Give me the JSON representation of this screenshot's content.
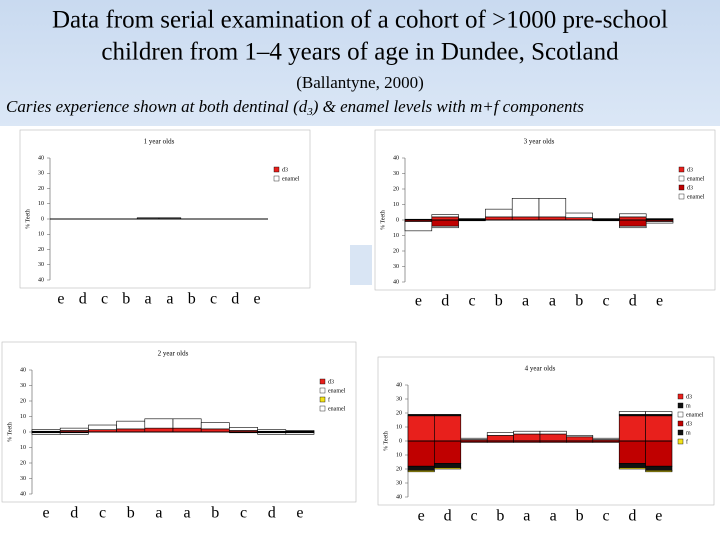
{
  "header": {
    "title_lines": [
      "Data from serial examination of a cohort of >1000 pre-school",
      "children from 1–4 years of age in Dundee, Scotland"
    ],
    "source": "(Ballantyne, 2000)",
    "caption_parts": [
      "Caries experience shown at both dentinal (d",
      "3",
      ") & enamel levels with m+f components"
    ]
  },
  "chart_data": [
    {
      "type": "bar",
      "title": "1 year olds",
      "ylabel": "% Teeth",
      "categories": [
        "e",
        "d",
        "c",
        "b",
        "a",
        "a",
        "b",
        "c",
        "d",
        "e"
      ],
      "ylim": [
        -40,
        40
      ],
      "yticks": [
        40,
        30,
        20,
        10,
        0,
        {
          "value": -10,
          "label": "10"
        },
        {
          "value": -20,
          "label": "20"
        },
        {
          "value": -30,
          "label": "30"
        },
        {
          "value": -40,
          "label": "40"
        }
      ],
      "series": [
        {
          "name": "d3",
          "color": "#e8201c",
          "values": [
            0,
            0,
            0,
            0,
            0.3,
            0.3,
            0,
            0,
            0,
            0
          ]
        },
        {
          "name": "enamel",
          "color": "#ffffff",
          "values": [
            0,
            0,
            0,
            0,
            0.5,
            0.5,
            0,
            0,
            0,
            0
          ]
        }
      ]
    },
    {
      "type": "bar",
      "title": "2 year olds",
      "ylabel": "% Teeth",
      "categories": [
        "e",
        "d",
        "c",
        "b",
        "a",
        "a",
        "b",
        "c",
        "d",
        "e"
      ],
      "ylim": [
        -40,
        40
      ],
      "yticks": [
        40,
        30,
        20,
        10,
        0,
        {
          "value": -10,
          "label": "10"
        },
        {
          "value": -20,
          "label": "20"
        },
        {
          "value": -30,
          "label": "30"
        },
        {
          "value": -40,
          "label": "40"
        }
      ],
      "series": [
        {
          "name": "d3",
          "color": "#e8201c",
          "values": [
            0.5,
            1,
            1.5,
            2,
            2.5,
            2.5,
            2,
            1,
            0.5,
            0.5
          ]
        },
        {
          "name": "enamel",
          "color": "#ffffff",
          "values": [
            1,
            1.5,
            3,
            5,
            6,
            6,
            4,
            2,
            1,
            0.5
          ]
        },
        {
          "name": "f",
          "color": "#f2e21a",
          "values": [
            -0.5,
            -0.5,
            0,
            0,
            0,
            0,
            0,
            0,
            -0.5,
            -0.5
          ]
        },
        {
          "name": "enamel",
          "color": "#ffffff",
          "values": [
            -1,
            -1,
            0,
            0,
            0,
            0,
            0,
            -0.5,
            -1,
            -1
          ]
        }
      ]
    },
    {
      "type": "bar",
      "title": "3 year olds",
      "ylabel": "% Teeth",
      "categories": [
        "e",
        "d",
        "c",
        "b",
        "a",
        "a",
        "b",
        "c",
        "d",
        "e"
      ],
      "ylim": [
        -40,
        40
      ],
      "yticks": [
        40,
        30,
        20,
        10,
        0,
        {
          "value": -10,
          "label": "10"
        },
        {
          "value": -20,
          "label": "20"
        },
        {
          "value": -30,
          "label": "30"
        },
        {
          "value": -40,
          "label": "40"
        }
      ],
      "series": [
        {
          "name": "d3",
          "color": "#e8201c",
          "values": [
            0.5,
            2,
            0.5,
            2,
            2,
            2,
            1.5,
            0.5,
            2,
            0.5
          ]
        },
        {
          "name": "enamel",
          "color": "#ffffff",
          "values": [
            0,
            1.5,
            0.5,
            5,
            12,
            12,
            3,
            0.5,
            2,
            0.5
          ]
        },
        {
          "name": "d3",
          "color": "#c00000",
          "values": [
            -1,
            -4,
            -0.5,
            0,
            0,
            0,
            0,
            -0.5,
            -4,
            -1
          ]
        },
        {
          "name": "enamel",
          "color": "#ffffff",
          "values": [
            -6,
            -1,
            0,
            0,
            0,
            0,
            0,
            0,
            -1,
            -1
          ]
        }
      ]
    },
    {
      "type": "bar",
      "title": "4 year olds",
      "ylabel": "% Teeth",
      "categories": [
        "e",
        "d",
        "c",
        "b",
        "a",
        "a",
        "b",
        "c",
        "d",
        "e"
      ],
      "ylim": [
        -40,
        40
      ],
      "yticks": [
        40,
        30,
        20,
        10,
        0,
        {
          "value": -10,
          "label": "10"
        },
        {
          "value": -20,
          "label": "20"
        },
        {
          "value": -30,
          "label": "30"
        },
        {
          "value": -40,
          "label": "40"
        }
      ],
      "series": [
        {
          "name": "d3",
          "color": "#e8201c",
          "values": [
            18,
            18,
            1,
            4,
            5,
            5,
            3,
            1,
            18,
            18
          ]
        },
        {
          "name": "m",
          "color": "#111111",
          "values": [
            1,
            1,
            0,
            0,
            0,
            0,
            0,
            0,
            1,
            1
          ]
        },
        {
          "name": "enamel",
          "color": "#ffffff",
          "values": [
            0,
            0,
            1,
            2,
            2,
            2,
            1,
            1,
            2,
            2
          ]
        },
        {
          "name": "d3",
          "color": "#c00000",
          "values": [
            -18,
            -16,
            -1,
            -1,
            -1,
            -1,
            -1,
            -1,
            -16,
            -18
          ]
        },
        {
          "name": "m",
          "color": "#111111",
          "values": [
            -3,
            -3,
            0,
            0,
            0,
            0,
            0,
            0,
            -3,
            -3
          ]
        },
        {
          "name": "f",
          "color": "#f2e21a",
          "values": [
            -1,
            -1,
            0,
            0,
            0,
            0,
            0,
            0,
            -1,
            -1
          ]
        }
      ]
    }
  ]
}
